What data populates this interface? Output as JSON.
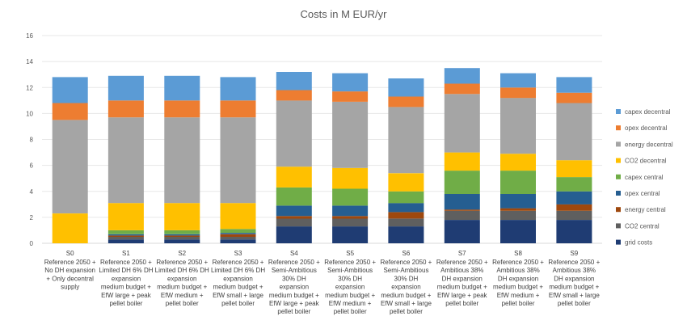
{
  "chart_data": {
    "type": "bar",
    "stacked": true,
    "title": "Costs in M EUR/yr",
    "xlabel": "",
    "ylabel": "",
    "ylim": [
      0,
      16
    ],
    "yticks": [
      0,
      2,
      4,
      6,
      8,
      10,
      12,
      14,
      16
    ],
    "grid": true,
    "legend_position": "right",
    "categories": [
      {
        "code": "S0",
        "lines": [
          "Reference 2050 +",
          "No DH expansion",
          "+ Only decentral",
          "supply"
        ]
      },
      {
        "code": "S1",
        "lines": [
          "Reference 2050 +",
          "Limited DH 6% DH",
          "expansion",
          "medium budget +",
          "EfW large + peak",
          "pellet boiler"
        ]
      },
      {
        "code": "S2",
        "lines": [
          "Reference 2050 +",
          "Limited DH 6% DH",
          "expansion",
          "medium budget +",
          "EfW medium +",
          "pellet boiler"
        ]
      },
      {
        "code": "S3",
        "lines": [
          "Reference 2050 +",
          "Limited DH 6% DH",
          "expansion",
          "medium budget +",
          "EfW small + large",
          "pellet boiler"
        ]
      },
      {
        "code": "S4",
        "lines": [
          "Reference 2050 +",
          "Semi-Ambitious",
          "30% DH",
          "expansion",
          "medium budget +",
          "EfW large + peak",
          "pellet boiler"
        ]
      },
      {
        "code": "S5",
        "lines": [
          "Reference 2050 +",
          "Semi-Ambitious",
          "30% DH",
          "expansion",
          "medium budget +",
          "EfW medium +",
          "pellet boiler"
        ]
      },
      {
        "code": "S6",
        "lines": [
          "Reference 2050 +",
          "Semi-Ambitious",
          "30% DH",
          "expansion",
          "medium budget +",
          "EfW small + large",
          "pellet boiler"
        ]
      },
      {
        "code": "S7",
        "lines": [
          "Reference 2050 +",
          "Ambitious 38%",
          "DH expansion",
          "medium budget +",
          "EfW large + peak",
          "pellet boiler"
        ]
      },
      {
        "code": "S8",
        "lines": [
          "Reference 2050 +",
          "Ambitious 38%",
          "DH expansion",
          "medium budget +",
          "EfW medium +",
          "pellet boiler"
        ]
      },
      {
        "code": "S9",
        "lines": [
          "Reference 2050 +",
          "Ambitious 38%",
          "DH expansion",
          "medium budget +",
          "EfW small + large",
          "pellet boiler"
        ]
      }
    ],
    "series": [
      {
        "name": "grid costs",
        "color": "#1f3c73",
        "values": [
          0.0,
          0.3,
          0.3,
          0.3,
          1.3,
          1.3,
          1.3,
          1.8,
          1.8,
          1.8
        ]
      },
      {
        "name": "CO2 central",
        "color": "#5f5f5f",
        "values": [
          0.0,
          0.2,
          0.2,
          0.2,
          0.6,
          0.6,
          0.6,
          0.7,
          0.7,
          0.7
        ]
      },
      {
        "name": "energy central",
        "color": "#9e480e",
        "values": [
          0.0,
          0.1,
          0.1,
          0.2,
          0.2,
          0.2,
          0.5,
          0.1,
          0.2,
          0.5
        ]
      },
      {
        "name": "opex central",
        "color": "#255e91",
        "values": [
          0.0,
          0.1,
          0.1,
          0.1,
          0.8,
          0.8,
          0.7,
          1.2,
          1.1,
          1.0
        ]
      },
      {
        "name": "capex central",
        "color": "#70ad47",
        "values": [
          0.0,
          0.3,
          0.3,
          0.3,
          1.4,
          1.3,
          0.9,
          1.8,
          1.8,
          1.1
        ]
      },
      {
        "name": "CO2 decentral",
        "color": "#ffc000",
        "values": [
          2.3,
          2.1,
          2.1,
          2.0,
          1.6,
          1.6,
          1.4,
          1.4,
          1.3,
          1.3
        ]
      },
      {
        "name": "energy decentral",
        "color": "#a5a5a5",
        "values": [
          7.2,
          6.6,
          6.6,
          6.6,
          5.1,
          5.1,
          5.1,
          4.5,
          4.3,
          4.4
        ]
      },
      {
        "name": "opex decentral",
        "color": "#ed7d31",
        "values": [
          1.3,
          1.3,
          1.3,
          1.3,
          0.8,
          0.8,
          0.8,
          0.8,
          0.8,
          0.8
        ]
      },
      {
        "name": "capex decentral",
        "color": "#5b9bd5",
        "values": [
          2.0,
          1.9,
          1.9,
          1.8,
          1.4,
          1.4,
          1.4,
          1.2,
          1.1,
          1.2
        ]
      }
    ],
    "legend_order": [
      "capex decentral",
      "opex decentral",
      "energy decentral",
      "CO2 decentral",
      "capex central",
      "opex central",
      "energy central",
      "CO2 central",
      "grid costs"
    ]
  }
}
